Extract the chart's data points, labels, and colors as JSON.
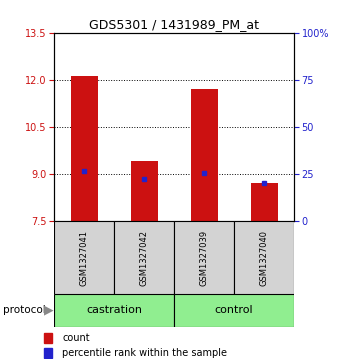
{
  "title": "GDS5301 / 1431989_PM_at",
  "samples": [
    "GSM1327041",
    "GSM1327042",
    "GSM1327039",
    "GSM1327040"
  ],
  "bar_bottoms": [
    7.5,
    7.5,
    7.5,
    7.5
  ],
  "bar_tops": [
    12.12,
    9.42,
    11.72,
    8.72
  ],
  "blue_y": [
    9.1,
    8.85,
    9.05,
    8.72
  ],
  "ylim": [
    7.5,
    13.5
  ],
  "yticks_left": [
    7.5,
    9.0,
    10.5,
    12.0,
    13.5
  ],
  "yticks_right": [
    0,
    25,
    50,
    75,
    100
  ],
  "ylim_right": [
    0,
    100
  ],
  "groups": [
    {
      "label": "castration",
      "cols": [
        0,
        1
      ]
    },
    {
      "label": "control",
      "cols": [
        2,
        3
      ]
    }
  ],
  "bar_color": "#cc1111",
  "blue_color": "#2222cc",
  "bar_width": 0.45,
  "label_box_color": "#d3d3d3",
  "group_box_color": "#90ee90",
  "legend_count_color": "#cc1111",
  "legend_blue_color": "#2222cc",
  "title_fontsize": 9,
  "axis_tick_fontsize": 7,
  "sample_label_fontsize": 6,
  "group_label_fontsize": 8,
  "legend_fontsize": 7
}
